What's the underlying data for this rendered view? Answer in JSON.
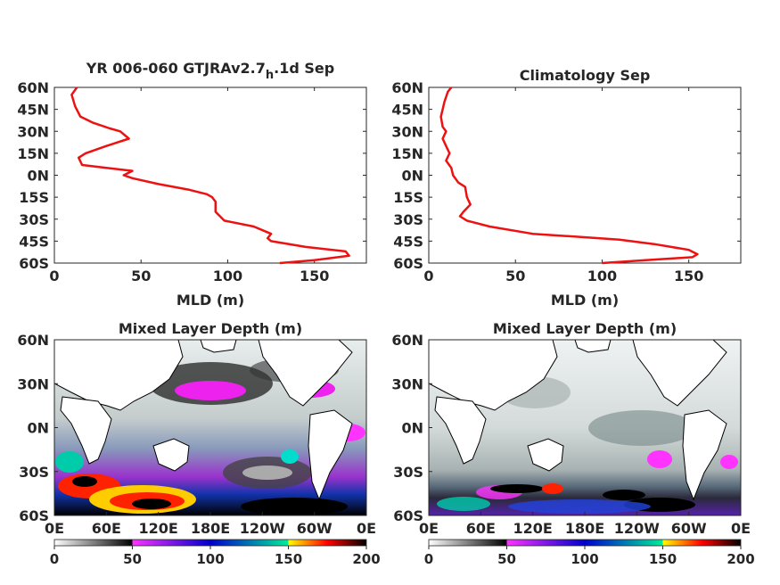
{
  "colorbar": {
    "ticks": [
      "0",
      "50",
      "100",
      "150",
      "200"
    ],
    "stops": [
      "#ffffff",
      "#000000",
      "#ff33ff",
      "#0000cc",
      "#00ee99",
      "#ffff00",
      "#ff0000",
      "#000000"
    ]
  },
  "chart_data": [
    {
      "type": "line",
      "title": "YR 006-060 GTJRAv2.7",
      "title_sub": "h",
      "title_tail": ".1d Sep",
      "xlabel": "MLD (m)",
      "xlim": [
        0,
        180
      ],
      "xticks": [
        "0",
        "50",
        "100",
        "150"
      ],
      "ylim": [
        -60,
        60
      ],
      "yticks": [
        "60N",
        "45N",
        "30N",
        "15N",
        "0N",
        "15S",
        "30S",
        "45S",
        "60S"
      ],
      "series": [
        {
          "color": "#ee1111",
          "x": [
            13,
            10,
            12,
            15,
            22,
            32,
            38,
            43,
            30,
            18,
            14,
            16,
            30,
            45,
            40,
            45,
            60,
            78,
            88,
            91,
            93,
            93,
            98,
            115,
            125,
            123,
            125,
            145,
            168,
            170,
            150,
            130
          ],
          "y": [
            60,
            55,
            47,
            40,
            36,
            32,
            30,
            25,
            20,
            15,
            12,
            7,
            5,
            3,
            0,
            -2,
            -6,
            -10,
            -13,
            -15,
            -18,
            -25,
            -31,
            -35,
            -40,
            -43,
            -45,
            -49,
            -52,
            -55,
            -58,
            -60
          ]
        }
      ]
    },
    {
      "type": "line",
      "title": "Climatology Sep",
      "xlabel": "MLD (m)",
      "xlim": [
        0,
        180
      ],
      "xticks": [
        "0",
        "50",
        "100",
        "150"
      ],
      "ylim": [
        -60,
        60
      ],
      "yticks": [
        "60N",
        "45N",
        "30N",
        "15N",
        "0N",
        "15S",
        "30S",
        "45S",
        "60S"
      ],
      "series": [
        {
          "color": "#ee1111",
          "x": [
            13,
            11,
            9,
            8,
            7,
            8,
            10,
            8,
            10,
            12,
            10,
            13,
            14,
            17,
            21,
            22,
            24,
            20,
            18,
            22,
            35,
            60,
            85,
            110,
            130,
            150,
            155,
            152,
            125,
            100
          ],
          "y": [
            60,
            57,
            50,
            45,
            40,
            33,
            30,
            25,
            20,
            15,
            10,
            5,
            0,
            -5,
            -8,
            -15,
            -20,
            -25,
            -28,
            -31,
            -35,
            -40,
            -42,
            -44,
            -47,
            -51,
            -54,
            -56,
            -58,
            -60
          ]
        }
      ]
    },
    {
      "type": "heatmap",
      "title": "Mixed Layer Depth (m)",
      "xticks": [
        "0E",
        "60E",
        "120E",
        "180E",
        "120W",
        "60W",
        "0E"
      ],
      "yticks": [
        "60N",
        "30N",
        "0N",
        "30S",
        "60S"
      ],
      "zlim": [
        0,
        200
      ],
      "note": "Model September mixed layer depth map"
    },
    {
      "type": "heatmap",
      "title": "Mixed Layer Depth (m)",
      "xticks": [
        "0E",
        "60E",
        "120E",
        "180E",
        "120W",
        "60W",
        "0E"
      ],
      "yticks": [
        "60N",
        "30N",
        "0N",
        "30S",
        "60S"
      ],
      "zlim": [
        0,
        200
      ],
      "note": "Observed climatology September mixed layer depth map"
    }
  ]
}
